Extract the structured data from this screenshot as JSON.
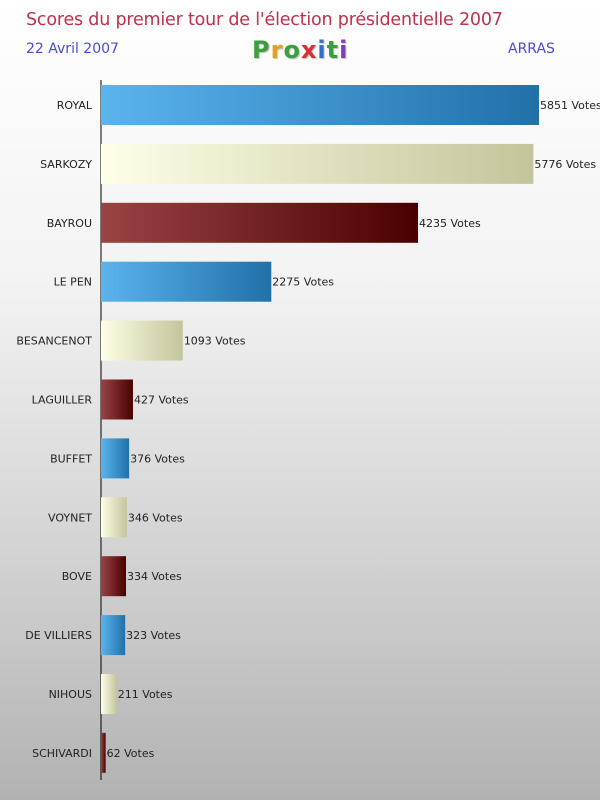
{
  "header": {
    "title": "Scores du premier tour de l'élection présidentielle 2007",
    "date": "22 Avril 2007",
    "location": "ARRAS",
    "logo_letters": [
      "P",
      "r",
      "o",
      "x",
      "i",
      "t",
      "i"
    ]
  },
  "colors": {
    "title": "#c0304a",
    "subtitle": "#4a4ad8",
    "logo": [
      "#3c9e3c",
      "#e0a020",
      "#3c9e3c",
      "#d83030",
      "#3070c8",
      "#3c9e3c",
      "#8040b0"
    ],
    "bar_blue": [
      "#5ab4ee",
      "#2270a8"
    ],
    "bar_cream": [
      "#ffffe6",
      "#c4c49c"
    ],
    "bar_maroon": [
      "#9a4444",
      "#4a0000"
    ]
  },
  "chart_data": {
    "type": "bar",
    "orientation": "horizontal",
    "value_suffix": " Votes",
    "categories": [
      "ROYAL",
      "SARKOZY",
      "BAYROU",
      "LE PEN",
      "BESANCENOT",
      "LAGUILLER",
      "BUFFET",
      "VOYNET",
      "BOVE",
      "DE VILLIERS",
      "NIHOUS",
      "SCHIVARDI"
    ],
    "values": [
      5851,
      5776,
      4235,
      2275,
      1093,
      427,
      376,
      346,
      334,
      323,
      211,
      62
    ],
    "bar_color_cycle": [
      "blue",
      "cream",
      "maroon"
    ],
    "xlim": [
      0,
      5851
    ],
    "grid": false,
    "legend": "none"
  }
}
